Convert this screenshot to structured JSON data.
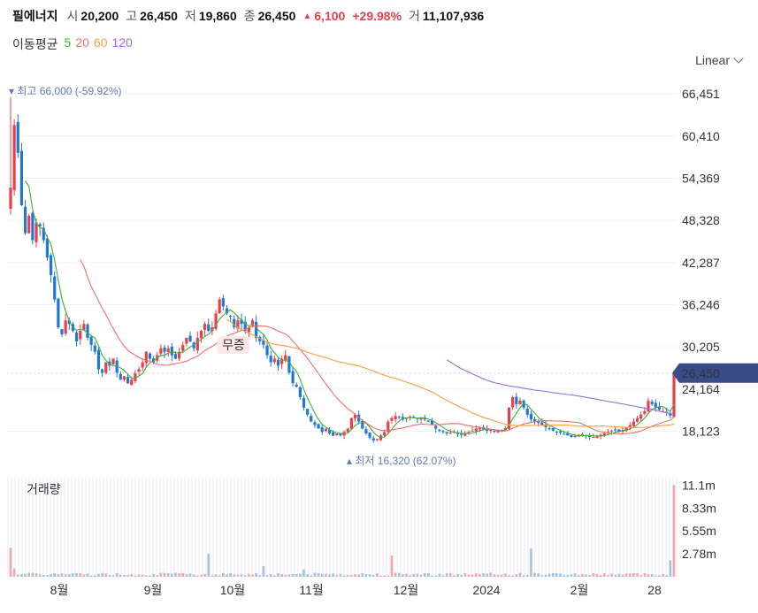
{
  "header": {
    "name": "필에너지",
    "open_label": "시",
    "open": "20,200",
    "high_label": "고",
    "high": "26,450",
    "low_label": "저",
    "low": "19,860",
    "close_label": "종",
    "close": "26,450",
    "change": "6,100",
    "change_pct": "+29.98%",
    "volume_label": "거",
    "volume": "11,107,936"
  },
  "ma_legend": {
    "title": "이동평균",
    "items": [
      {
        "label": "5",
        "color": "#3fae3f"
      },
      {
        "label": "20",
        "color": "#f0706a"
      },
      {
        "label": "60",
        "color": "#f59e45"
      },
      {
        "label": "120",
        "color": "#9b6be0"
      }
    ]
  },
  "scale_selector": "Linear",
  "volume_label": "거래량",
  "colors": {
    "up": "#e8404a",
    "down": "#1f78d1",
    "price_tag": "#3a4b89",
    "annot": "#5c7ab8"
  },
  "chart_data": {
    "type": "candlestick",
    "price_axis": {
      "ticks": [
        "66,451",
        "60,410",
        "54,369",
        "48,328",
        "42,287",
        "36,246",
        "30,205",
        "24,164",
        "18,123"
      ],
      "values": [
        66451,
        60410,
        54369,
        48328,
        42287,
        36246,
        30205,
        24164,
        18123
      ],
      "range": [
        14000,
        68500
      ]
    },
    "volume_axis": {
      "ticks": [
        "11.1m",
        "8.33m",
        "5.55m",
        "2.78m"
      ],
      "values": [
        11.1,
        8.33,
        5.55,
        2.78
      ],
      "max": 12.0
    },
    "x_labels": [
      "8월",
      "9월",
      "10월",
      "11월",
      "12월",
      "2024",
      "2월",
      "28"
    ],
    "current_price": "26,450",
    "current_price_value": 26450,
    "high_annotation": {
      "label": "최고",
      "value": "66,000",
      "pct": "(-59.92%)"
    },
    "low_annotation": {
      "label": "최저",
      "value": "16,320",
      "pct": "(62.07%)"
    },
    "event_marker": "무증",
    "closes": [
      53000,
      62000,
      58000,
      50500,
      46500,
      49000,
      45500,
      48000,
      47500,
      45500,
      43000,
      40500,
      37000,
      33000,
      32000,
      34000,
      33500,
      32500,
      31000,
      32500,
      33500,
      31500,
      30500,
      29500,
      27000,
      26500,
      28000,
      27500,
      28500,
      26500,
      25500,
      26000,
      25000,
      25500,
      26500,
      27000,
      28000,
      29500,
      28500,
      28000,
      29000,
      30000,
      29500,
      30000,
      29000,
      28500,
      29500,
      30500,
      31500,
      31000,
      30000,
      31500,
      32500,
      33500,
      32500,
      33000,
      35000,
      37000,
      36000,
      35000,
      34500,
      33000,
      34000,
      33500,
      32500,
      33000,
      34000,
      31500,
      31000,
      30500,
      29000,
      28000,
      28500,
      27500,
      28500,
      29000,
      26500,
      25000,
      24500,
      23000,
      21500,
      20500,
      19500,
      19000,
      18500,
      18000,
      18500,
      17800,
      17500,
      17800,
      17500,
      18000,
      18500,
      20000,
      20500,
      19500,
      18500,
      17800,
      17200,
      16800,
      17000,
      17500,
      18000,
      19500,
      20000,
      20300,
      20100,
      19800,
      20000,
      20200,
      20100,
      19900,
      20000,
      19800,
      19500,
      19000,
      18500,
      18300,
      18000,
      17800,
      17900,
      18000,
      17700,
      17600,
      17800,
      18000,
      18200,
      18500,
      18600,
      18400,
      18200,
      18300,
      18100,
      18200,
      18300,
      18600,
      21500,
      23000,
      22000,
      22500,
      21500,
      20500,
      19800,
      19500,
      19300,
      19000,
      18700,
      18400,
      18200,
      18000,
      17900,
      17700,
      17500,
      17300,
      17400,
      17600,
      17700,
      17500,
      17300,
      17300,
      17400,
      17600,
      17800,
      18000,
      18200,
      18300,
      18100,
      18300,
      18600,
      19000,
      19500,
      20000,
      20500,
      21000,
      22500,
      22000,
      21500,
      21200,
      21000,
      20800,
      20350,
      26450
    ],
    "ma_series": [
      "5",
      "20",
      "60",
      "120"
    ]
  }
}
